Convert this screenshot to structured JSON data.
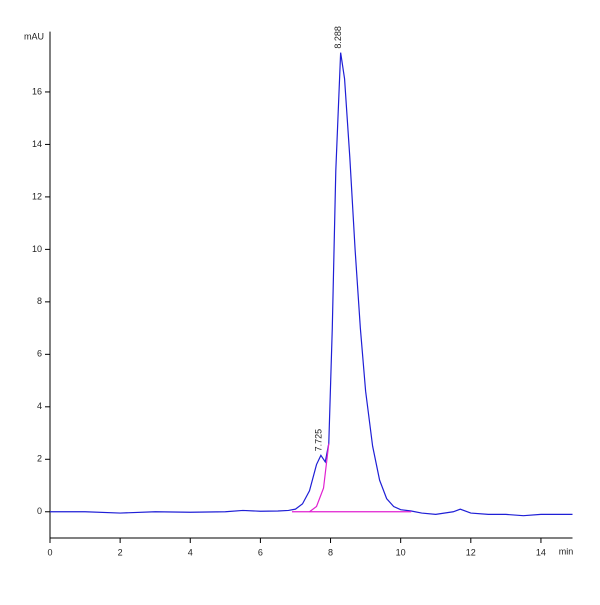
{
  "chart_data": {
    "type": "line",
    "y_label": "mAU",
    "x_label": "min",
    "xlim": [
      0,
      14.9
    ],
    "ylim": [
      -1,
      18.3
    ],
    "xticks": [
      0,
      2,
      4,
      6,
      8,
      10,
      12,
      14
    ],
    "yticks": [
      0,
      2,
      4,
      6,
      8,
      10,
      12,
      14,
      16
    ],
    "series": [
      {
        "color": "#1f1fd6",
        "x": [
          0,
          1,
          2,
          3,
          4,
          5,
          5.5,
          6,
          6.5,
          6.8,
          7.0,
          7.2,
          7.4,
          7.6,
          7.725,
          7.85,
          7.95,
          8.05,
          8.15,
          8.288,
          8.4,
          8.55,
          8.7,
          8.85,
          9.0,
          9.2,
          9.4,
          9.6,
          9.8,
          10.0,
          10.3,
          10.6,
          11,
          11.5,
          11.7,
          12,
          12.5,
          13,
          13.5,
          14,
          14.9
        ],
        "values": [
          0,
          0,
          -0.05,
          0,
          -0.02,
          0,
          0.05,
          0.02,
          0.03,
          0.05,
          0.1,
          0.3,
          0.8,
          1.8,
          2.15,
          1.9,
          2.6,
          7,
          13,
          17.5,
          16.5,
          13.5,
          10,
          7,
          4.6,
          2.5,
          1.2,
          0.5,
          0.2,
          0.08,
          0.03,
          -0.05,
          -0.1,
          0,
          0.1,
          -0.05,
          -0.1,
          -0.1,
          -0.15,
          -0.1,
          -0.1
        ]
      },
      {
        "color": "#e020d0",
        "x": [
          6.9,
          10.3
        ],
        "values": [
          0,
          0
        ]
      },
      {
        "color": "#e020d0",
        "x": [
          7.4,
          7.6,
          7.8,
          7.95
        ],
        "values": [
          0,
          0.2,
          0.9,
          2.6
        ]
      }
    ],
    "annotations": [
      {
        "text": "7.725",
        "x": 7.725,
        "y": 2.15
      },
      {
        "text": "8.288",
        "x": 8.288,
        "y": 17.5
      }
    ]
  }
}
